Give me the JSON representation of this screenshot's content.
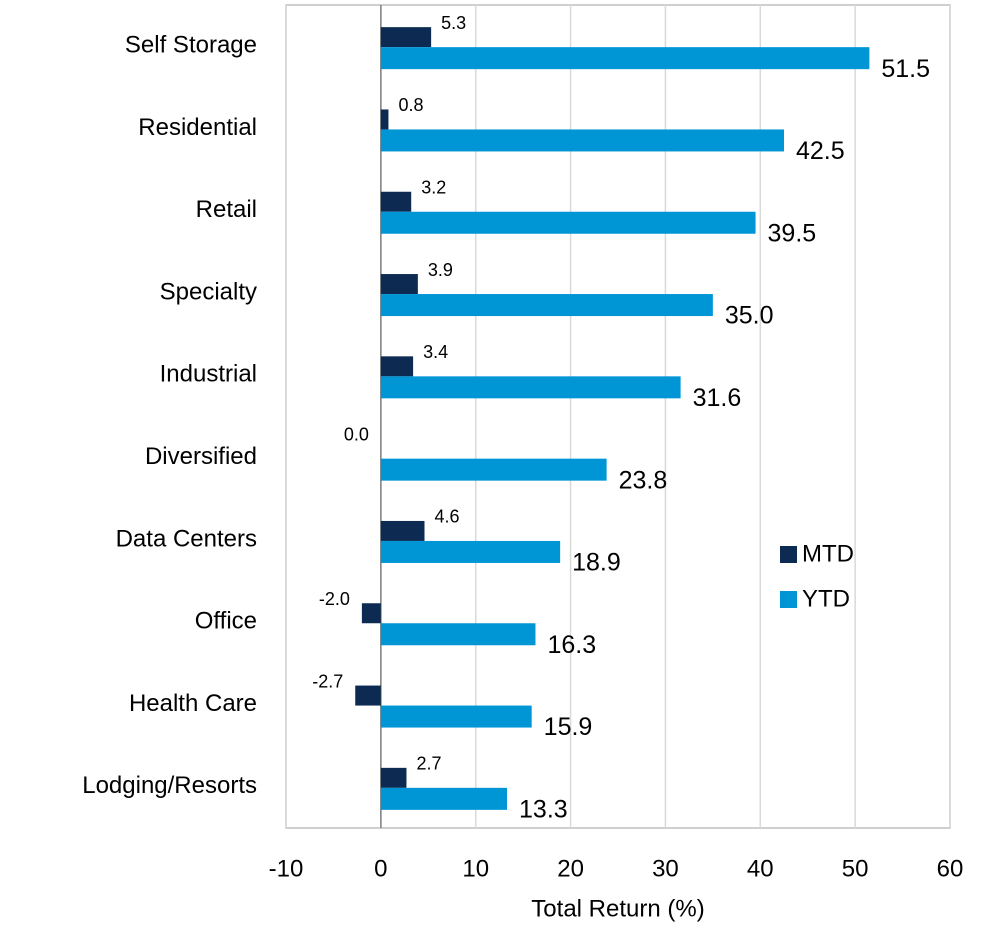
{
  "chart_data": {
    "type": "hbar",
    "xlabel": "Total Return (%)",
    "categories": [
      "Self Storage",
      "Residential",
      "Retail",
      "Specialty",
      "Industrial",
      "Diversified",
      "Data Centers",
      "Office",
      "Health Care",
      "Lodging/Resorts"
    ],
    "series": [
      {
        "name": "MTD",
        "color": "#0c2a52",
        "values": [
          5.3,
          0.8,
          3.2,
          3.9,
          3.4,
          0.0,
          4.6,
          -2.0,
          -2.7,
          2.7
        ],
        "value_labels": [
          "5.3",
          "0.8",
          "3.2",
          "3.9",
          "3.4",
          "0.0",
          "4.6",
          "-2.0",
          "-2.7",
          "2.7"
        ]
      },
      {
        "name": "YTD",
        "color": "#0096d6",
        "values": [
          51.5,
          42.5,
          39.5,
          35.0,
          31.6,
          23.8,
          18.9,
          16.3,
          15.9,
          13.3
        ],
        "value_labels": [
          "51.5",
          "42.5",
          "39.5",
          "35.0",
          "31.6",
          "23.8",
          "18.9",
          "16.3",
          "15.9",
          "13.3"
        ]
      }
    ],
    "xlim": [
      -10,
      60
    ],
    "xticks": [
      -10,
      0,
      10,
      20,
      30,
      40,
      50,
      60
    ],
    "grid": true,
    "legend": "center right"
  }
}
